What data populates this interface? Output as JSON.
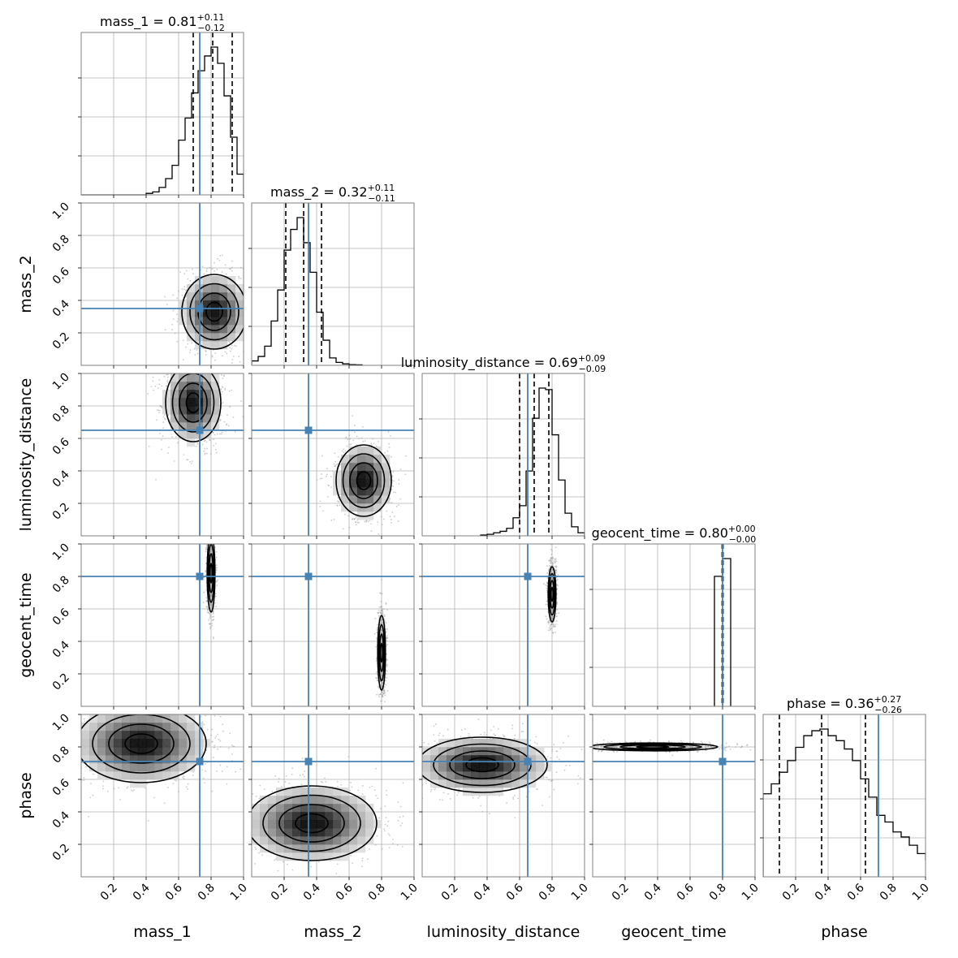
{
  "figure": {
    "colors": {
      "truth": "#4682b4",
      "hist": "#000000",
      "grid": "#b0b0b0",
      "frame": "#808080",
      "scatter": "#a0a0a0"
    }
  },
  "chart_data": {
    "type": "corner",
    "parameters": [
      "mass_1",
      "mass_2",
      "luminosity_distance",
      "geocent_time",
      "phase"
    ],
    "axis_range": [
      0,
      1
    ],
    "ticks": [
      0.2,
      0.4,
      0.6,
      0.8,
      1.0
    ],
    "tick_labels": [
      "0.2",
      "0.4",
      "0.6",
      "0.8",
      "1.0"
    ],
    "grid": true,
    "truths": [
      0.73,
      0.35,
      0.65,
      0.8,
      0.71
    ],
    "titles": [
      {
        "prefix": "mass_1 = 0.81",
        "sup": "+0.11",
        "sub": "−0.12"
      },
      {
        "prefix": "mass_2 = 0.32",
        "sup": "+0.11",
        "sub": "−0.11"
      },
      {
        "prefix": "luminosity_distance = 0.69",
        "sup": "+0.09",
        "sub": "−0.09"
      },
      {
        "prefix": "geocent_time = 0.80",
        "sup": "+0.00",
        "sub": "−0.00"
      },
      {
        "prefix": "phase = 0.36",
        "sup": "+0.27",
        "sub": "−0.26"
      }
    ],
    "quantiles": [
      [
        0.69,
        0.81,
        0.93
      ],
      [
        0.21,
        0.32,
        0.43
      ],
      [
        0.6,
        0.69,
        0.78
      ],
      [
        0.797,
        0.8,
        0.803
      ],
      [
        0.1,
        0.36,
        0.63
      ]
    ],
    "histograms": [
      {
        "bin_edges": [
          0.4,
          0.44,
          0.48,
          0.52,
          0.56,
          0.6,
          0.64,
          0.68,
          0.72,
          0.76,
          0.8,
          0.84,
          0.88,
          0.92,
          0.96,
          1.0
        ],
        "counts": [
          0.01,
          0.02,
          0.05,
          0.11,
          0.2,
          0.37,
          0.52,
          0.69,
          0.84,
          0.94,
          1.0,
          0.89,
          0.67,
          0.39,
          0.14
        ]
      },
      {
        "bin_edges": [
          0.0,
          0.04,
          0.08,
          0.12,
          0.16,
          0.2,
          0.24,
          0.28,
          0.32,
          0.36,
          0.4,
          0.44,
          0.48,
          0.52,
          0.56,
          0.6,
          0.64,
          0.68
        ],
        "counts": [
          0.03,
          0.06,
          0.13,
          0.3,
          0.51,
          0.78,
          0.92,
          1.0,
          0.83,
          0.63,
          0.36,
          0.17,
          0.05,
          0.02,
          0.01,
          0.005,
          0.003
        ]
      },
      {
        "bin_edges": [
          0.36,
          0.4,
          0.44,
          0.48,
          0.52,
          0.56,
          0.6,
          0.64,
          0.68,
          0.72,
          0.76,
          0.8,
          0.84,
          0.88,
          0.92,
          0.96,
          1.0
        ],
        "counts": [
          0.005,
          0.01,
          0.02,
          0.03,
          0.05,
          0.12,
          0.2,
          0.43,
          0.78,
          0.98,
          0.97,
          0.67,
          0.37,
          0.15,
          0.06,
          0.02
        ]
      },
      {
        "bin_edges": [
          0.75,
          0.8,
          0.85
        ],
        "counts": [
          0.88,
          1.0
        ]
      },
      {
        "bin_edges": [
          0.0,
          0.05,
          0.1,
          0.15,
          0.2,
          0.25,
          0.3,
          0.35,
          0.4,
          0.45,
          0.5,
          0.55,
          0.6,
          0.65,
          0.7,
          0.75,
          0.8,
          0.85,
          0.9,
          0.95,
          1.0
        ],
        "counts": [
          0.5,
          0.56,
          0.63,
          0.7,
          0.78,
          0.85,
          0.88,
          0.89,
          0.85,
          0.82,
          0.77,
          0.7,
          0.59,
          0.48,
          0.37,
          0.33,
          0.27,
          0.24,
          0.19,
          0.14,
          0.1
        ]
      }
    ],
    "joint": [
      {
        "x": 1,
        "y": 0,
        "mean": [
          0.82,
          0.33
        ],
        "sigma": [
          0.1,
          0.115
        ],
        "rho": 0.0
      },
      {
        "x": 2,
        "y": 0,
        "mean": [
          0.69,
          0.82
        ],
        "sigma": [
          0.085,
          0.12
        ],
        "rho": 0.0
      },
      {
        "x": 2,
        "y": 1,
        "mean": [
          0.69,
          0.34
        ],
        "sigma": [
          0.085,
          0.11
        ],
        "rho": 0.0
      },
      {
        "x": 3,
        "y": 0,
        "mean": [
          0.8,
          0.82
        ],
        "sigma": [
          0.012,
          0.12
        ],
        "rho": 0.0
      },
      {
        "x": 3,
        "y": 1,
        "mean": [
          0.8,
          0.33
        ],
        "sigma": [
          0.012,
          0.115
        ],
        "rho": 0.0
      },
      {
        "x": 3,
        "y": 2,
        "mean": [
          0.8,
          0.69
        ],
        "sigma": [
          0.012,
          0.085
        ],
        "rho": 0.0
      },
      {
        "x": 4,
        "y": 0,
        "mean": [
          0.37,
          0.82
        ],
        "sigma": [
          0.2,
          0.12
        ],
        "rho": 0.0
      },
      {
        "x": 4,
        "y": 1,
        "mean": [
          0.37,
          0.33
        ],
        "sigma": [
          0.2,
          0.115
        ],
        "rho": 0.0
      },
      {
        "x": 4,
        "y": 2,
        "mean": [
          0.37,
          0.69
        ],
        "sigma": [
          0.2,
          0.085
        ],
        "rho": 0.0
      },
      {
        "x": 4,
        "y": 3,
        "mean": [
          0.37,
          0.8
        ],
        "sigma": [
          0.2,
          0.012
        ],
        "rho": 0.0
      }
    ],
    "contour_levels_sigma": [
      0.5,
      1.0,
      1.5,
      2.0
    ]
  }
}
